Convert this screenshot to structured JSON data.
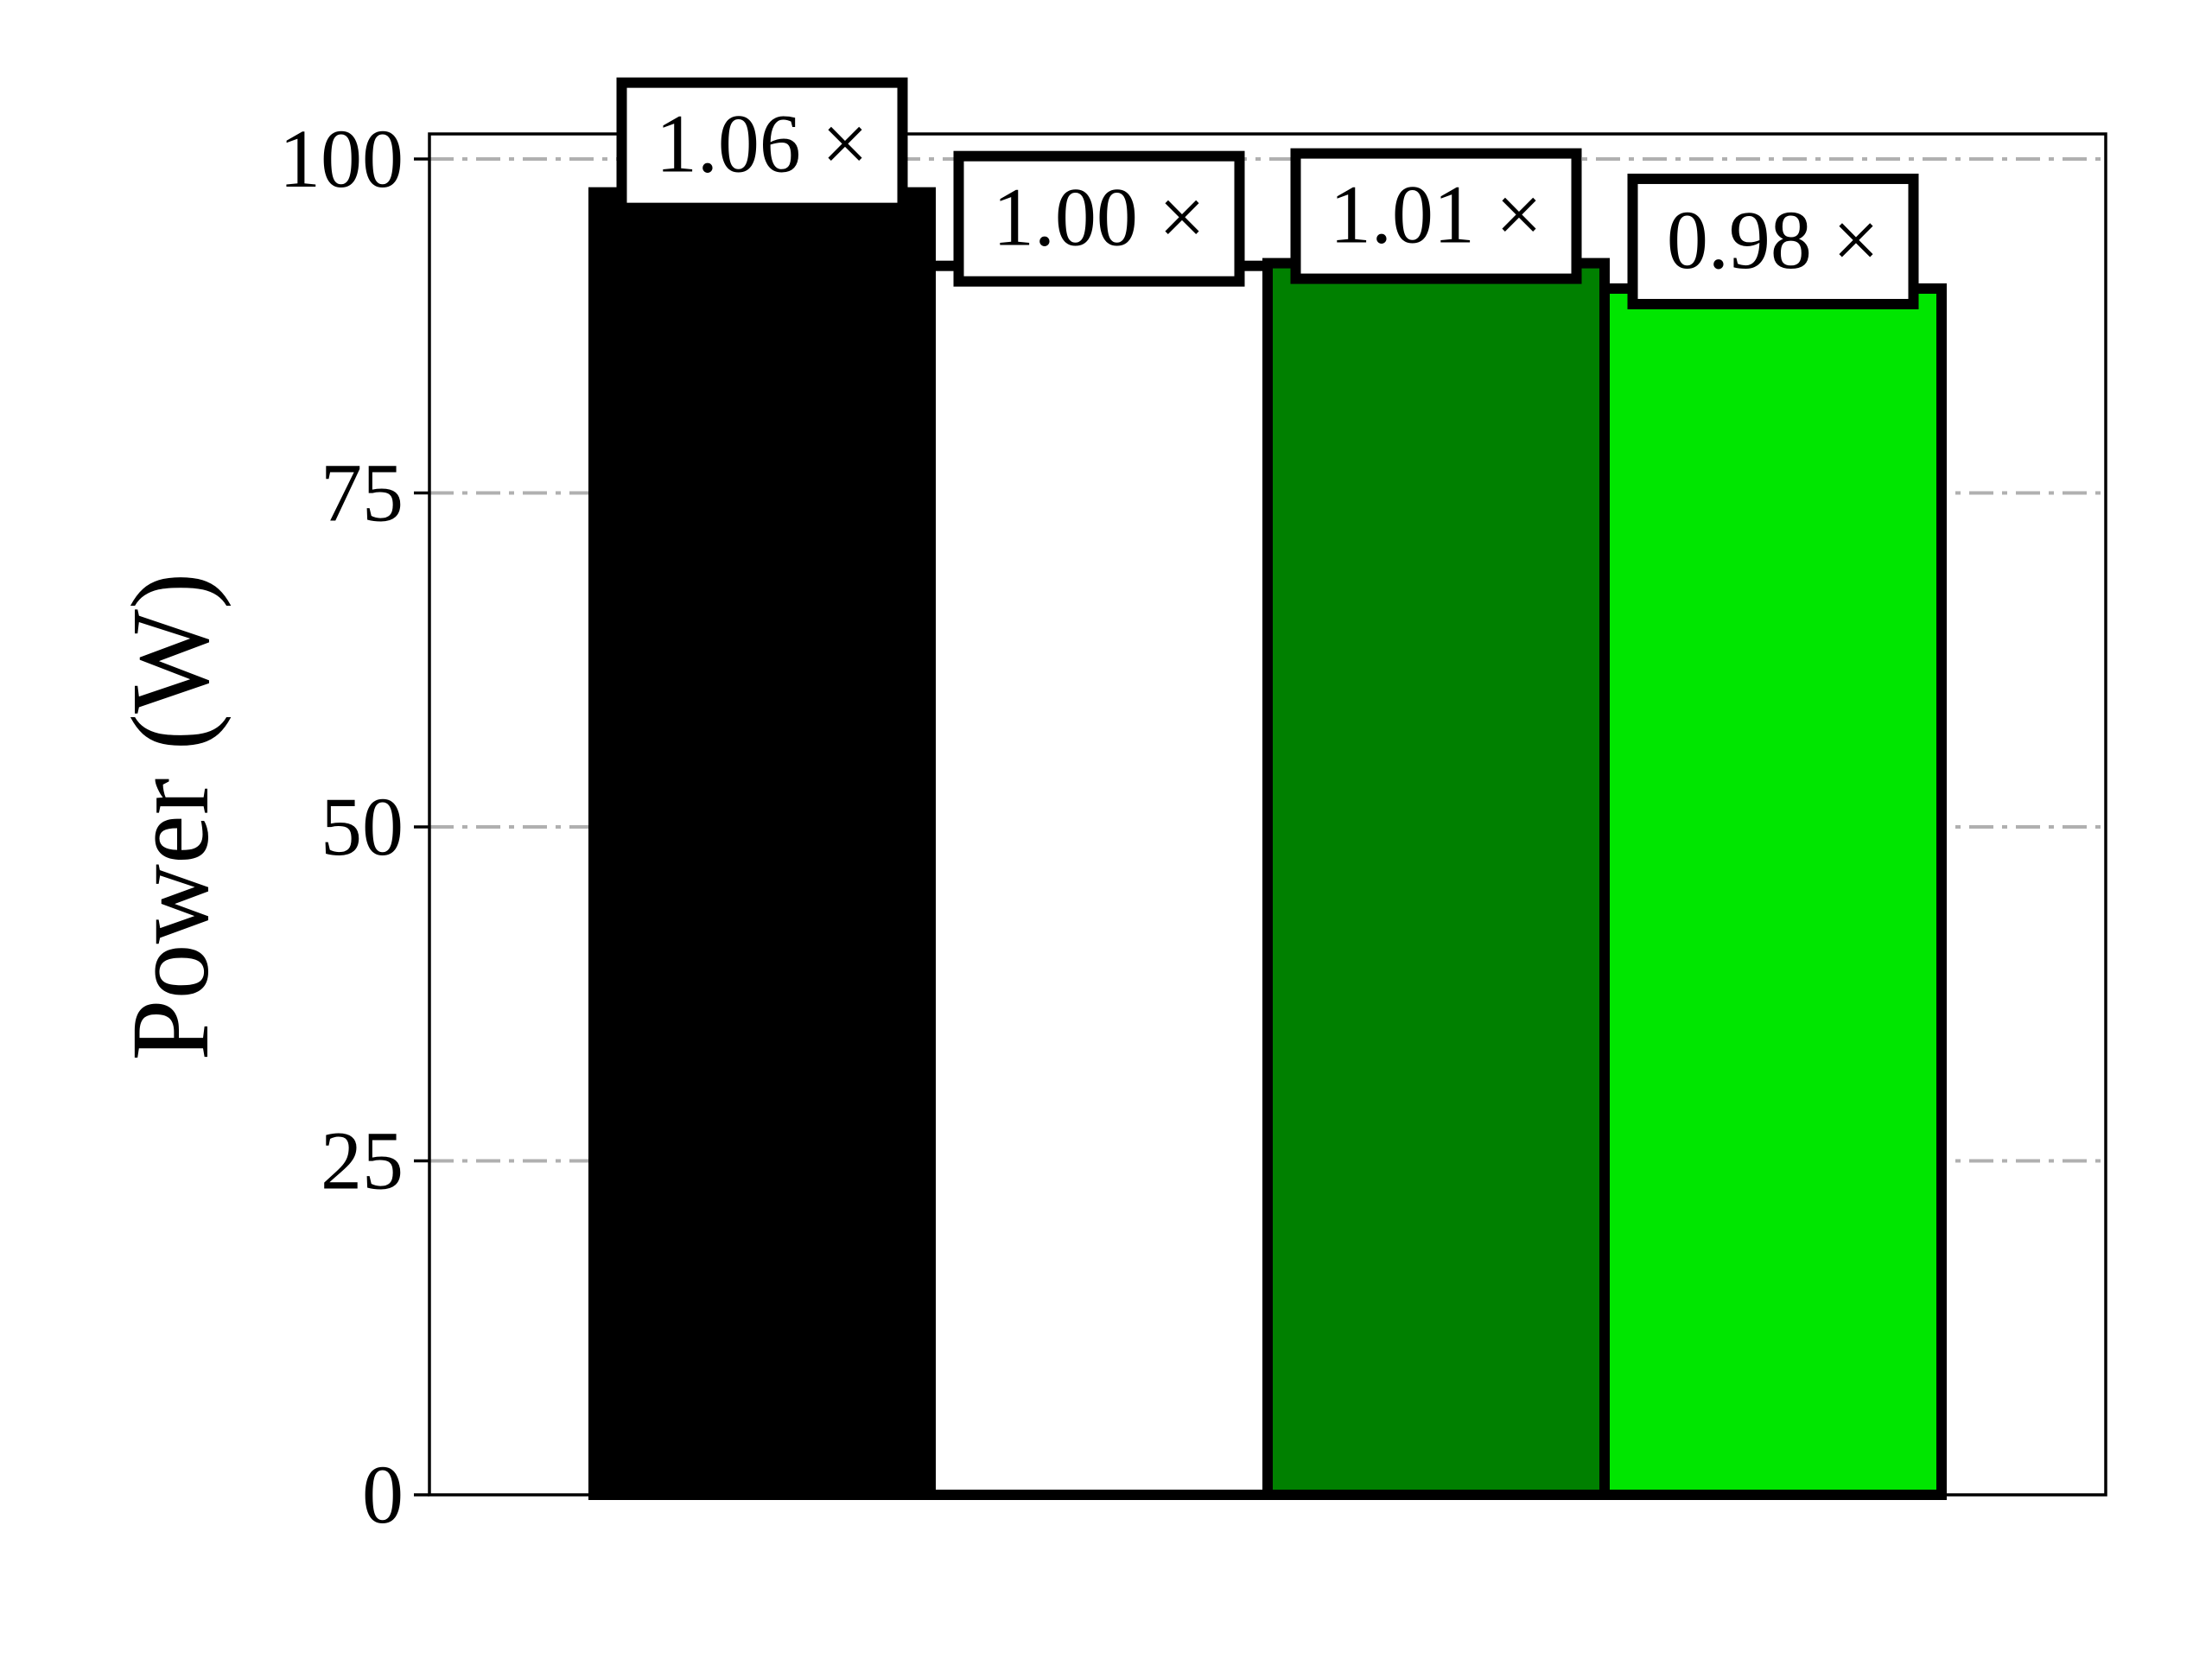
{
  "chart_data": {
    "type": "bar",
    "ylabel": "Power (W)",
    "ylim": [
      0,
      102
    ],
    "yticks": [
      0,
      25,
      50,
      75,
      100
    ],
    "grid": "y",
    "bars": [
      {
        "value": 97.5,
        "label": "1.06 ×",
        "color": "#000000"
      },
      {
        "value": 92.0,
        "label": "1.00 ×",
        "color": "#ffffff"
      },
      {
        "value": 92.2,
        "label": "1.01 ×",
        "color": "#008000"
      },
      {
        "value": 90.3,
        "label": "0.98 ×",
        "color": "#00e600"
      }
    ]
  }
}
